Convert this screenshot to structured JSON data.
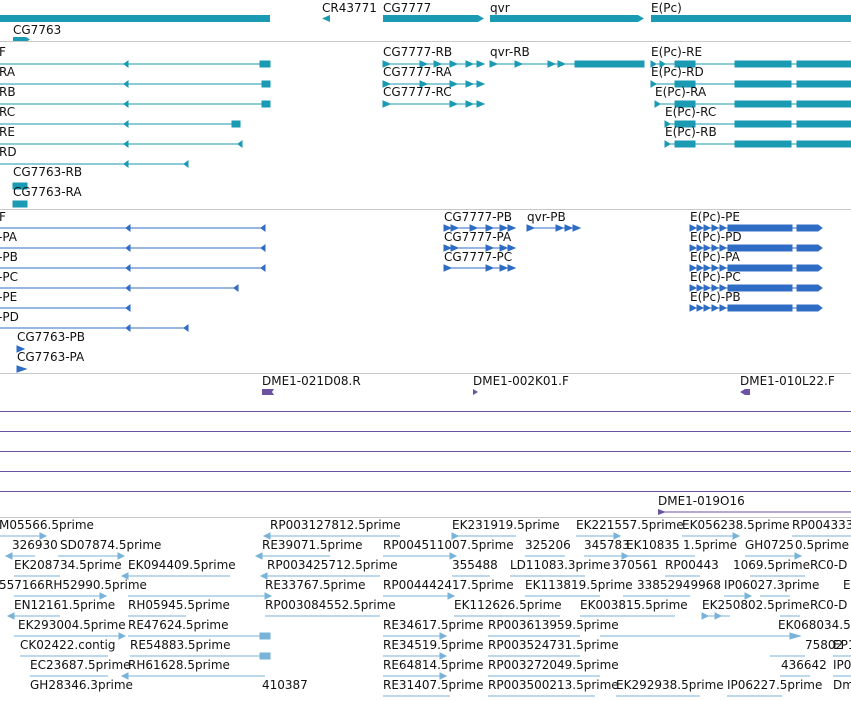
{
  "colors": {
    "teal": "#1a9ab3",
    "blue": "#2f6cc4",
    "purple": "#6b52a3",
    "sky": "#7ab3d9",
    "divider": "#c8c8c8"
  },
  "track_gene_spans": {
    "labels": [
      "CR43771",
      "CG7777",
      "qvr",
      "E(Pc)",
      "CG7763"
    ]
  },
  "track_transcripts_a": {
    "left_labels": [
      "F",
      "RA",
      "RB",
      "RC",
      "RE",
      "RD"
    ],
    "labels": [
      "CG7763-RB",
      "CG7763-RA",
      "CG7777-RB",
      "CG7777-RA",
      "CG7777-RC",
      "qvr-RB",
      "E(Pc)-RE",
      "E(Pc)-RD",
      "E(Pc)-RA",
      "E(Pc)-RC",
      "E(Pc)-RB"
    ]
  },
  "track_transcripts_b": {
    "left_labels": [
      "F",
      "-PA",
      "-PB",
      "-PC",
      "-PE",
      "-PD"
    ],
    "labels": [
      "CG7763-PB",
      "CG7763-PA",
      "CG7777-PB",
      "CG7777-PA",
      "CG7777-PC",
      "qvr-PB",
      "E(Pc)-PE",
      "E(Pc)-PD",
      "E(Pc)-PA",
      "E(Pc)-PC",
      "E(Pc)-PB"
    ]
  },
  "track_clones": {
    "labels": [
      "DME1-021D08.R",
      "DME1-002K01.F",
      "DME1-010L22.F",
      "DME1-019O16"
    ]
  },
  "track_ests": {
    "labels": [
      "M05566.5prime",
      "RP003127812.5prime",
      "EK231919.5prime",
      "EK221557.5prime",
      "EK056238.5prime",
      "RP004333",
      "326930",
      "SD07874.5prime",
      "RE39071.5prime",
      "RP004511007.5prime",
      "325206",
      "345783",
      "EK10835",
      "1.5prime",
      "GH0725",
      "0.5prime",
      "EK208734.5prime",
      "EK094409.5prime",
      "RP003425712.5prime",
      "355488",
      "LD11083.3prime",
      "370561",
      "RP00443",
      "1069.5prime",
      "RC0-D",
      "557166",
      "RH52990.5prime",
      "RE33767.5prime",
      "RP004442417.5prime",
      "EK113819.5prime",
      "33852949968",
      "IP06027.3prime",
      "E",
      "EN12161.5prime",
      "RH05945.5prime",
      "RP003084552.5prime",
      "EK112626.5prime",
      "EK003815.5prime",
      "EK250802.5prime",
      "RC0-D",
      "EK293004.5prime",
      "RE47624.5prime",
      "RE34617.5prime",
      "RP003613959.5prime",
      "EK068034.5",
      "CK02422.contig",
      "RE54883.5prime",
      "RE34519.5prime",
      "RP003524731.5prime",
      "75802",
      "EP16",
      "EC23687.5prime",
      "RH61628.5prime",
      "RE64814.5prime",
      "RP003272049.5prime",
      "436642",
      "IP0",
      "GH28346.3prime",
      "410387",
      "RE31407.5prime",
      "RP003500213.5prime",
      "EK292938.5prime",
      "IP06227.5prime",
      "Dm"
    ]
  }
}
